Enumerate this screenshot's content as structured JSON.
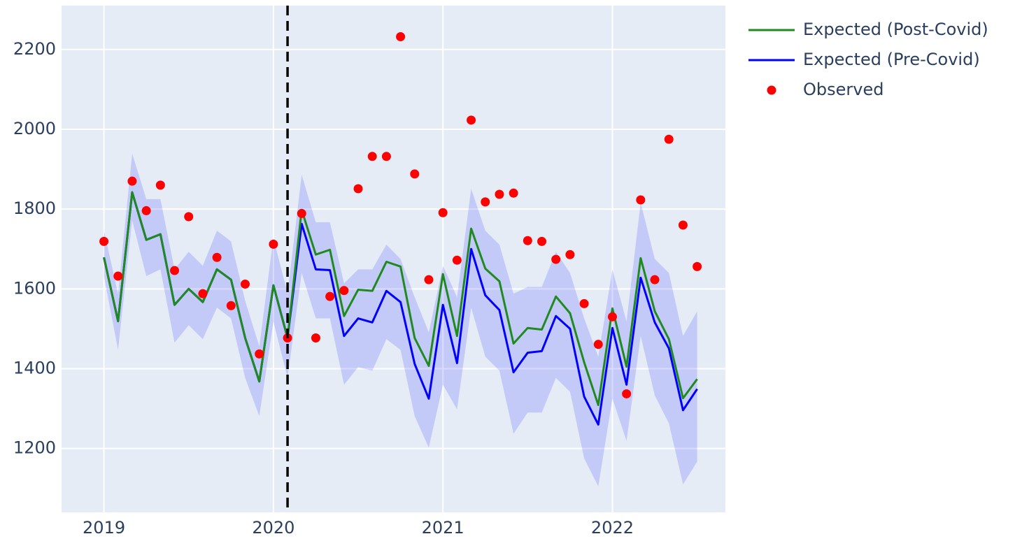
{
  "chart_data": {
    "type": "line",
    "x": [
      "2019-01",
      "2019-02",
      "2019-03",
      "2019-04",
      "2019-05",
      "2019-06",
      "2019-07",
      "2019-08",
      "2019-09",
      "2019-10",
      "2019-11",
      "2019-12",
      "2020-01",
      "2020-02",
      "2020-03",
      "2020-04",
      "2020-05",
      "2020-06",
      "2020-07",
      "2020-08",
      "2020-09",
      "2020-10",
      "2020-11",
      "2020-12",
      "2021-01",
      "2021-02",
      "2021-03",
      "2021-04",
      "2021-05",
      "2021-06",
      "2021-07",
      "2021-08",
      "2021-09",
      "2021-10",
      "2021-11",
      "2021-12",
      "2022-01",
      "2022-02",
      "2022-03",
      "2022-04",
      "2022-05",
      "2022-06",
      "2022-07"
    ],
    "band": {
      "color": "rgba(0,0,255,0.14)",
      "upper": [
        1746,
        1588,
        1939,
        1825,
        1825,
        1649,
        1693,
        1658,
        1746,
        1719,
        1570,
        1456,
        1728,
        1588,
        1886,
        1767,
        1767,
        1614,
        1649,
        1649,
        1711,
        1675,
        1579,
        1491,
        1658,
        1579,
        1851,
        1746,
        1711,
        1588,
        1605,
        1605,
        1693,
        1640,
        1526,
        1430,
        1649,
        1518,
        1816,
        1675,
        1640,
        1482,
        1544
      ],
      "lower": [
        1632,
        1447,
        1772,
        1632,
        1649,
        1465,
        1509,
        1474,
        1553,
        1526,
        1377,
        1281,
        1518,
        1377,
        1640,
        1526,
        1526,
        1360,
        1404,
        1395,
        1474,
        1447,
        1281,
        1202,
        1360,
        1298,
        1553,
        1430,
        1395,
        1237,
        1290,
        1290,
        1377,
        1342,
        1175,
        1105,
        1325,
        1219,
        1482,
        1333,
        1263,
        1110,
        1167
      ]
    },
    "series": [
      {
        "name": "Expected (Post-Covid)",
        "color": "#1f8a1f",
        "mode": "line",
        "values": [
          1679,
          1519,
          1842,
          1723,
          1737,
          1560,
          1600,
          1567,
          1649,
          1623,
          1477,
          1368,
          1609,
          1477,
          1798,
          1686,
          1698,
          1532,
          1598,
          1595,
          1668,
          1656,
          1477,
          1407,
          1637,
          1482,
          1751,
          1651,
          1619,
          1463,
          1502,
          1498,
          1581,
          1539,
          1416,
          1309,
          1551,
          1405,
          1677,
          1544,
          1474,
          1326,
          1374
        ]
      },
      {
        "name": "Expected (Pre-Covid)",
        "color": "#0000ff",
        "mode": "line",
        "values": [
          1679,
          1519,
          1842,
          1723,
          1737,
          1560,
          1600,
          1567,
          1649,
          1623,
          1477,
          1368,
          1609,
          1477,
          1763,
          1649,
          1647,
          1482,
          1526,
          1516,
          1595,
          1567,
          1412,
          1325,
          1560,
          1414,
          1700,
          1584,
          1547,
          1391,
          1440,
          1444,
          1532,
          1500,
          1330,
          1260,
          1502,
          1360,
          1628,
          1516,
          1451,
          1296,
          1349
        ]
      },
      {
        "name": "Observed",
        "color": "#ff0000",
        "mode": "markers",
        "values": [
          1719,
          1632,
          1870,
          1796,
          1860,
          1646,
          1781,
          1588,
          1679,
          1558,
          1612,
          1437,
          1712,
          1477,
          1789,
          1477,
          1581,
          1596,
          1851,
          1932,
          1932,
          2232,
          1888,
          1623,
          1791,
          1672,
          2023,
          1818,
          1837,
          1840,
          1721,
          1719,
          1674,
          1686,
          1563,
          1461,
          1530,
          1337,
          1823,
          1623,
          1975,
          1760,
          1656
        ]
      }
    ],
    "vline": "2020-02",
    "xlim": [
      "2018-10",
      "2022-09"
    ],
    "xticks": [
      "2019",
      "2020",
      "2021",
      "2022"
    ],
    "ylim": [
      1040,
      2310
    ],
    "yticks": [
      1200,
      1400,
      1600,
      1800,
      2000,
      2200
    ],
    "grid": true,
    "legend": "right"
  }
}
